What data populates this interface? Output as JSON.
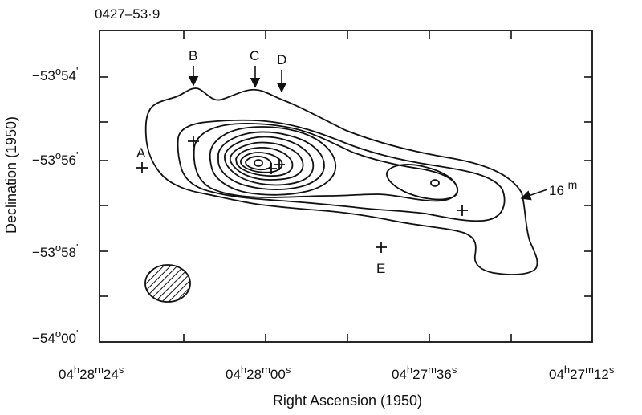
{
  "figure": {
    "title": "0427–53·9",
    "xlabel": "Right Ascension (1950)",
    "ylabel": "Declination (1950)",
    "contour_label": "16m"
  },
  "axes": {
    "y_ticks": [
      {
        "deg": "−53",
        "min": "54",
        "label": "−53°54'"
      },
      {
        "deg": "−53",
        "min": "56",
        "label": "−53°56'"
      },
      {
        "deg": "−53",
        "min": "58",
        "label": "−53°58'"
      },
      {
        "deg": "−54",
        "min": "00",
        "label": "−54°00'"
      }
    ],
    "x_ticks": [
      {
        "h": "04",
        "m": "28",
        "s": "24",
        "label": "04h28m24s"
      },
      {
        "h": "04",
        "m": "28",
        "s": "00",
        "label": "04h28m00s"
      },
      {
        "h": "04",
        "m": "27",
        "s": "36",
        "label": "04h27m36s"
      },
      {
        "h": "04",
        "m": "27",
        "s": "12",
        "label": "04h27m12s"
      }
    ]
  },
  "sources": [
    {
      "name": "A"
    },
    {
      "name": "B"
    },
    {
      "name": "C"
    },
    {
      "name": "D"
    },
    {
      "name": "E"
    }
  ],
  "colors": {
    "ink": "#111111",
    "background": "#ffffff"
  }
}
